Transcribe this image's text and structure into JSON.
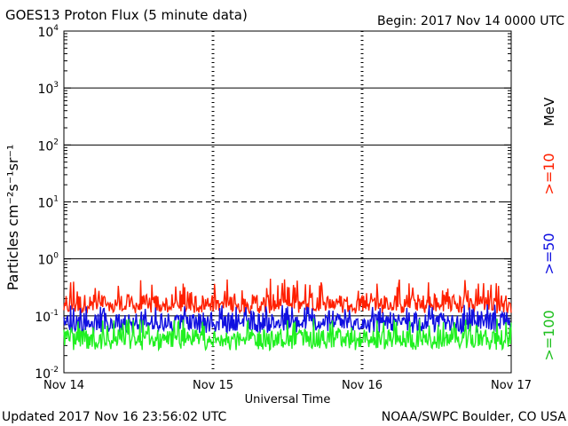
{
  "chart_data": {
    "type": "line",
    "title": "GOES13 Proton Flux (5 minute data)",
    "begin_label": "Begin: 2017 Nov 14 0000 UTC",
    "xlabel": "Universal Time",
    "ylabel": "Particles cm⁻²s⁻¹sr⁻¹",
    "y_scale": "log",
    "ylim": [
      0.01,
      10000
    ],
    "y_ticks": [
      {
        "base": "10",
        "exp": "4",
        "value": 10000
      },
      {
        "base": "10",
        "exp": "3",
        "value": 1000
      },
      {
        "base": "10",
        "exp": "2",
        "value": 100
      },
      {
        "base": "10",
        "exp": "1",
        "value": 10
      },
      {
        "base": "10",
        "exp": "0",
        "value": 1
      },
      {
        "base": "10",
        "exp": "-1",
        "value": 0.1
      },
      {
        "base": "10",
        "exp": "-2",
        "value": 0.01
      }
    ],
    "x_range_days": [
      0,
      3
    ],
    "x_ticks": [
      {
        "label": "Nov 14",
        "day": 0
      },
      {
        "label": "Nov 15",
        "day": 1
      },
      {
        "label": "Nov 16",
        "day": 2
      },
      {
        "label": "Nov 17",
        "day": 3
      }
    ],
    "horizontal_lines": [
      {
        "value": 1000,
        "style": "solid"
      },
      {
        "value": 100,
        "style": "solid"
      },
      {
        "value": 10,
        "style": "dashed"
      },
      {
        "value": 1,
        "style": "solid"
      },
      {
        "value": 0.1,
        "style": "solid"
      }
    ],
    "legend_unit": "MeV",
    "series": [
      {
        "name": ">=10",
        "color": "#ff2000",
        "typical": 0.17,
        "low": 0.11,
        "high": 0.45
      },
      {
        "name": ">=50",
        "color": "#1010e0",
        "typical": 0.08,
        "low": 0.05,
        "high": 0.16
      },
      {
        "name": ">=100",
        "color": "#20f020",
        "typical": 0.04,
        "low": 0.025,
        "high": 0.09
      }
    ]
  },
  "footer": {
    "updated": "Updated 2017 Nov 16 23:56:02 UTC",
    "source": "NOAA/SWPC Boulder, CO USA"
  }
}
